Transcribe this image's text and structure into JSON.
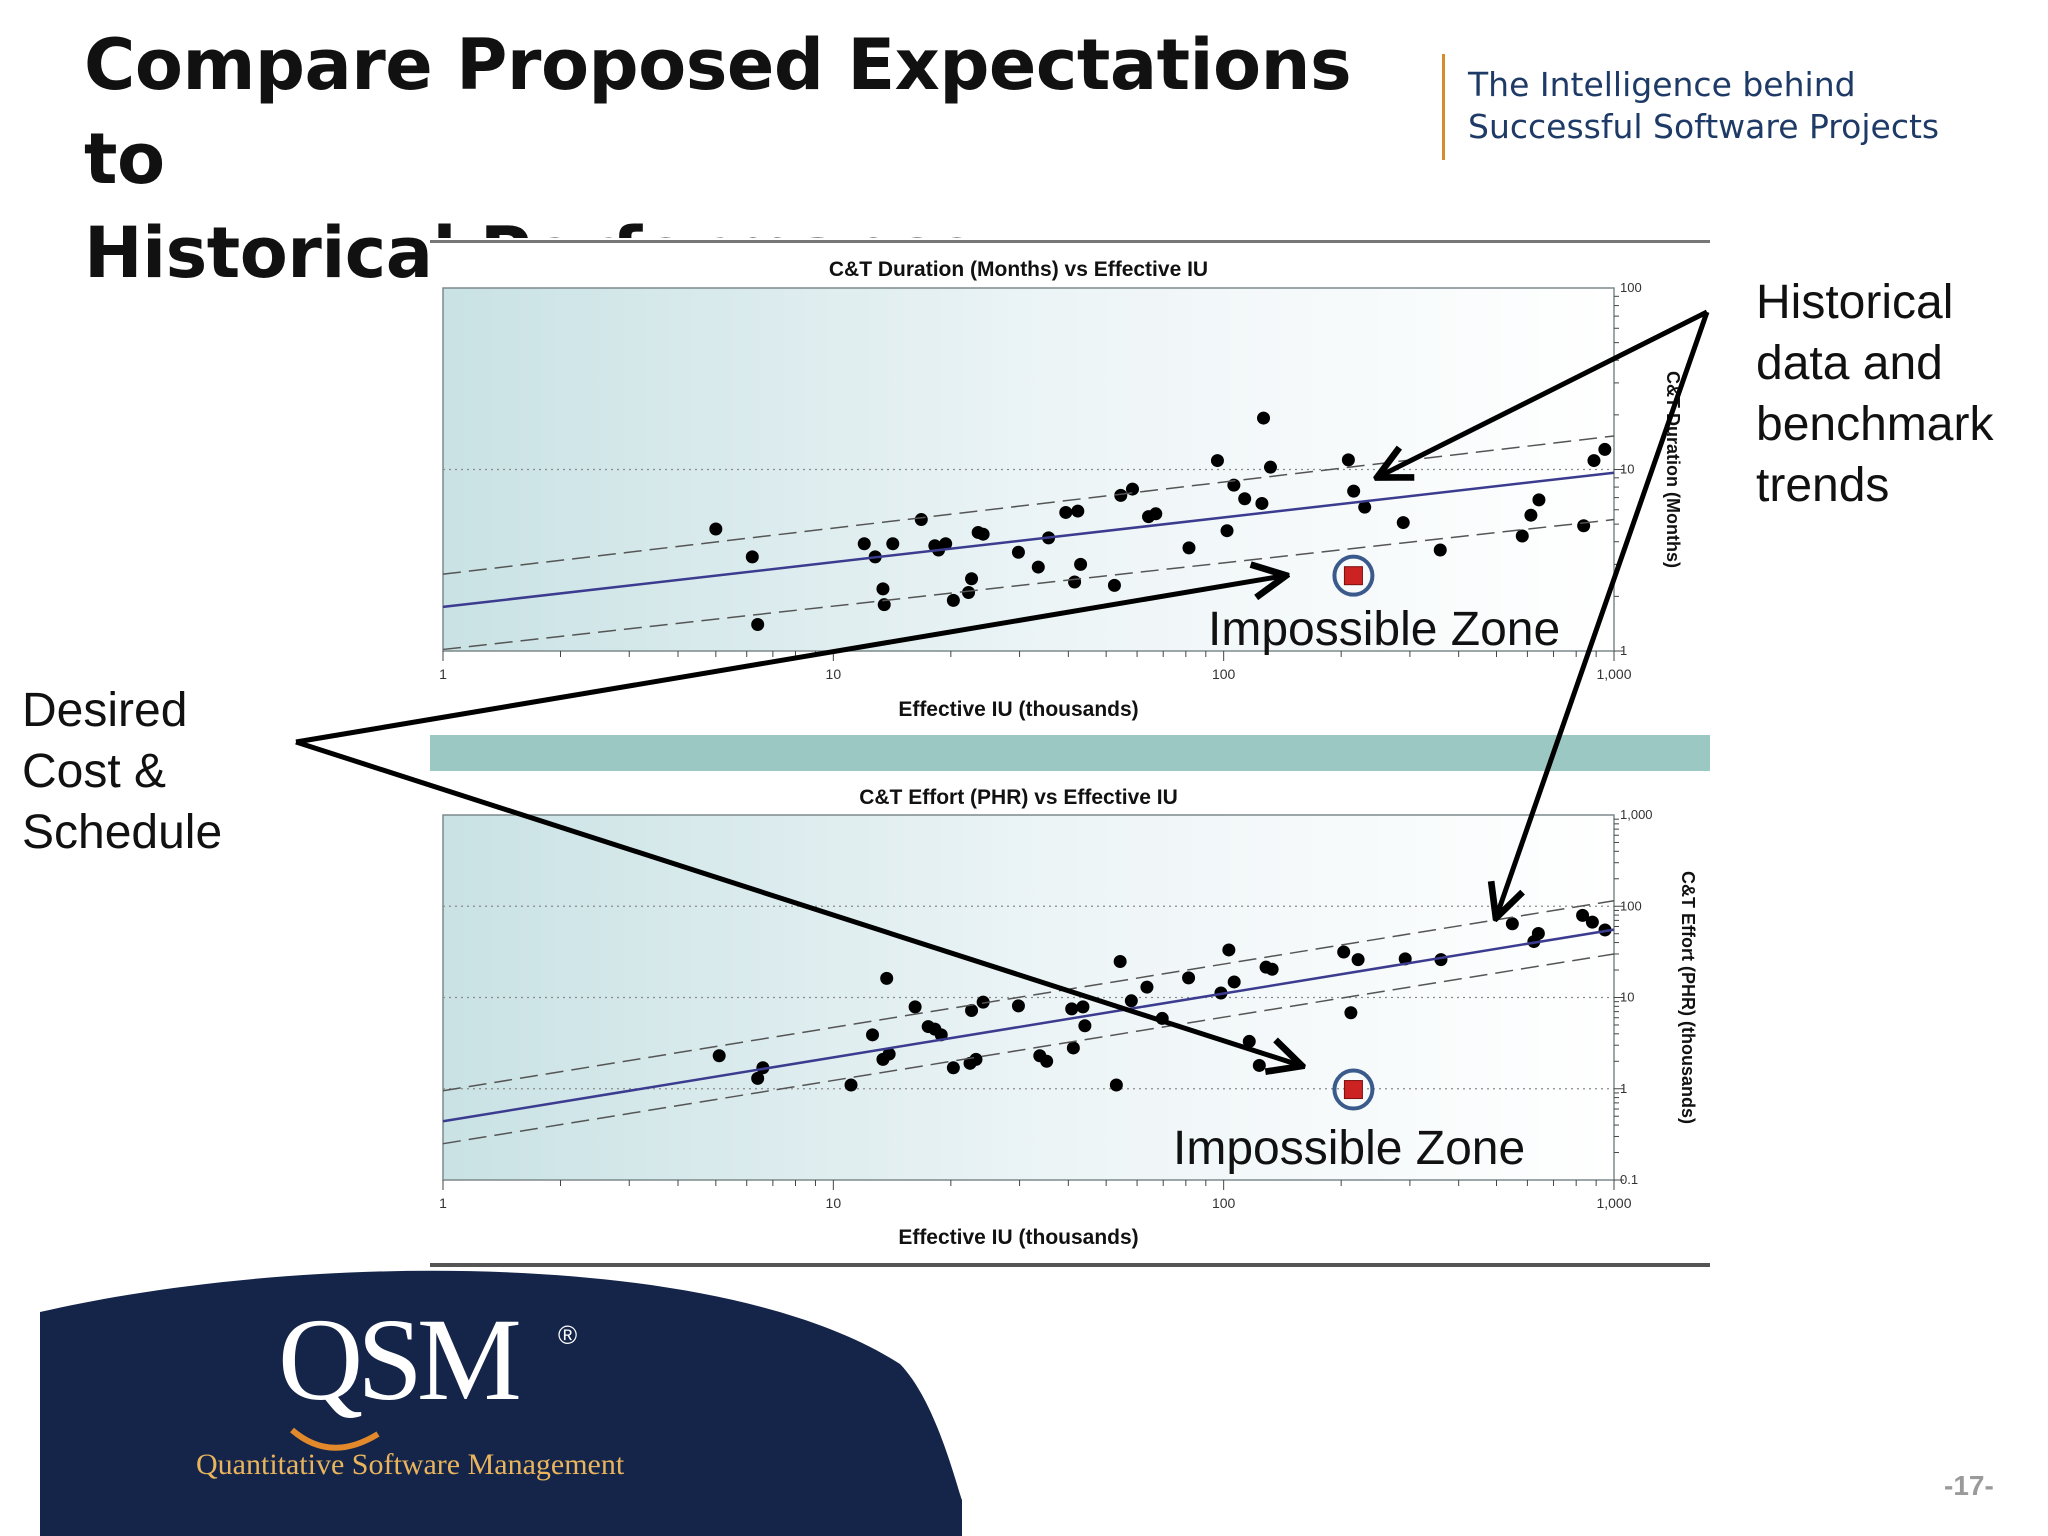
{
  "slide": {
    "title_line1": "Compare Proposed Expectations to",
    "title_line2": "Historical Performance",
    "tagline_line1": "The Intelligence behind",
    "tagline_line2": "Successful Software Projects",
    "page_number": "-17-"
  },
  "callouts": {
    "historical": [
      "Historical",
      "data and",
      "benchmark",
      "trends"
    ],
    "desired": [
      "Desired",
      "Cost &",
      "Schedule"
    ]
  },
  "logo": {
    "wordmark": "QSM",
    "registered": "®",
    "subtitle": "Quantitative Software Management"
  },
  "colors": {
    "title": "#111111",
    "tagline": "#1e3a66",
    "tagline_rule": "#d88a2e",
    "logo_background": "#15254a",
    "logo_subtitle": "#e9b45c",
    "trend_line": "#3b3b8f",
    "band_lines": "#555555",
    "chart_divider": "#9cc8c4",
    "proposed_marker": "#cc2222",
    "proposed_ring": "#3a5a8c"
  },
  "chart_data": [
    {
      "type": "scatter",
      "title": "C&T Duration (Months) vs Effective IU",
      "xlabel": "Effective IU (thousands)",
      "ylabel": "C&T Duration (Months)",
      "x_scale": "log",
      "y_scale": "log",
      "xlim": [
        1,
        1000
      ],
      "ylim": [
        1,
        100
      ],
      "x_ticks": [
        1,
        10,
        100,
        1000
      ],
      "x_tick_labels": [
        "1",
        "10",
        "100",
        "1,000"
      ],
      "y_ticks": [
        1,
        10,
        100
      ],
      "y_tick_labels": [
        "1",
        "10",
        "100"
      ],
      "grid": true,
      "annotation": "Impossible Zone",
      "series": [
        {
          "points": [
            [
              5,
              4.7
            ],
            [
              6.2,
              3.3
            ],
            [
              6.4,
              1.4
            ],
            [
              12,
              3.9
            ],
            [
              12.8,
              3.3
            ],
            [
              13.4,
              2.2
            ],
            [
              13.5,
              1.8
            ],
            [
              14.2,
              3.9
            ],
            [
              16.8,
              5.3
            ],
            [
              18.2,
              3.8
            ],
            [
              18.6,
              3.6
            ],
            [
              19.4,
              3.9
            ],
            [
              20.3,
              1.9
            ],
            [
              22.2,
              2.1
            ],
            [
              22.6,
              2.5
            ],
            [
              23.5,
              4.5
            ],
            [
              24.2,
              4.4
            ],
            [
              29.8,
              3.5
            ],
            [
              33.5,
              2.9
            ],
            [
              35.6,
              4.2
            ],
            [
              39.4,
              5.8
            ],
            [
              41.5,
              2.4
            ],
            [
              42.3,
              5.9
            ],
            [
              43,
              3
            ],
            [
              52.5,
              2.3
            ],
            [
              54.5,
              7.2
            ],
            [
              58.4,
              7.8
            ],
            [
              64.2,
              5.5
            ],
            [
              67,
              5.7
            ],
            [
              81.5,
              3.7
            ],
            [
              96.4,
              11.2
            ],
            [
              102,
              4.6
            ],
            [
              106.2,
              8.2
            ],
            [
              113.2,
              6.9
            ],
            [
              125.3,
              6.5
            ],
            [
              126.5,
              19.2
            ],
            [
              131.8,
              10.3
            ],
            [
              208.7,
              11.3
            ],
            [
              215.3,
              7.6
            ],
            [
              229.8,
              6.2
            ],
            [
              288.4,
              5.1
            ],
            [
              358.8,
              3.6
            ],
            [
              582.1,
              4.3
            ],
            [
              612.5,
              5.6
            ],
            [
              642.2,
              6.8
            ],
            [
              836.1,
              4.9
            ],
            [
              888.5,
              11.2
            ],
            [
              947.4,
              12.9
            ]
          ]
        },
        {
          "name": "trend",
          "style": "line",
          "points": [
            [
              1,
              1.75
            ],
            [
              1000,
              9.6
            ]
          ]
        },
        {
          "name": "upper band",
          "style": "dashed",
          "points": [
            [
              1,
              2.65
            ],
            [
              1000,
              15.3
            ]
          ]
        },
        {
          "name": "lower band",
          "style": "dashed",
          "points": [
            [
              1,
              1.02
            ],
            [
              1000,
              5.3
            ]
          ]
        },
        {
          "name": "proposed",
          "style": "highlighted",
          "points": [
            [
              215,
              2.6
            ]
          ]
        }
      ]
    },
    {
      "type": "scatter",
      "title": "C&T Effort (PHR) vs Effective IU",
      "xlabel": "Effective IU (thousands)",
      "ylabel": "C&T Effort (PHR) (thousands)",
      "x_scale": "log",
      "y_scale": "log",
      "xlim": [
        1,
        1000
      ],
      "ylim": [
        0.1,
        1000
      ],
      "x_ticks": [
        1,
        10,
        100,
        1000
      ],
      "x_tick_labels": [
        "1",
        "10",
        "100",
        "1,000"
      ],
      "y_ticks": [
        0.1,
        1,
        10,
        100,
        1000
      ],
      "y_tick_labels": [
        "0.1",
        "1",
        "10",
        "100",
        "1,000"
      ],
      "grid": true,
      "annotation": "Impossible Zone",
      "series": [
        {
          "points": [
            [
              5.1,
              2.3
            ],
            [
              6.4,
              1.3
            ],
            [
              6.6,
              1.7
            ],
            [
              11.1,
              1.1
            ],
            [
              12.6,
              3.9
            ],
            [
              13.4,
              2.1
            ],
            [
              13.7,
              16.2
            ],
            [
              13.9,
              2.4
            ],
            [
              16.2,
              7.9
            ],
            [
              17.5,
              4.8
            ],
            [
              18.2,
              4.5
            ],
            [
              18.9,
              3.9
            ],
            [
              20.3,
              1.7
            ],
            [
              22.4,
              1.9
            ],
            [
              22.6,
              7.2
            ],
            [
              23.2,
              2.1
            ],
            [
              24.2,
              8.9
            ],
            [
              29.8,
              8.1
            ],
            [
              33.8,
              2.3
            ],
            [
              35.2,
              2
            ],
            [
              40.8,
              7.5
            ],
            [
              41.2,
              2.8
            ],
            [
              43.6,
              7.9
            ],
            [
              44.1,
              4.9
            ],
            [
              53.1,
              1.1
            ],
            [
              54.3,
              24.8
            ],
            [
              58,
              9.2
            ],
            [
              63.6,
              13
            ],
            [
              69.6,
              5.9
            ],
            [
              81.3,
              16.4
            ],
            [
              98.4,
              11.2
            ],
            [
              103.1,
              33.2
            ],
            [
              106.4,
              14.8
            ],
            [
              116.3,
              3.3
            ],
            [
              123.4,
              1.8
            ],
            [
              128.4,
              21.5
            ],
            [
              133.1,
              20.4
            ],
            [
              203,
              31.5
            ],
            [
              211.8,
              6.8
            ],
            [
              221,
              26
            ],
            [
              291.8,
              26.5
            ],
            [
              360.3,
              26
            ],
            [
              549,
              64.2
            ],
            [
              623.4,
              41
            ],
            [
              640.1,
              50.3
            ],
            [
              830.8,
              79.4
            ],
            [
              880.2,
              67
            ],
            [
              948.4,
              55
            ]
          ]
        },
        {
          "name": "trend",
          "style": "line",
          "points": [
            [
              1,
              0.44
            ],
            [
              1000,
              55.5
            ]
          ]
        },
        {
          "name": "upper band",
          "style": "dashed",
          "points": [
            [
              1,
              0.95
            ],
            [
              1000,
              115
            ]
          ]
        },
        {
          "name": "lower band",
          "style": "dashed",
          "points": [
            [
              1,
              0.25
            ],
            [
              1000,
              30
            ]
          ]
        },
        {
          "name": "proposed",
          "style": "highlighted",
          "points": [
            [
              215,
              0.98
            ]
          ]
        }
      ]
    }
  ]
}
